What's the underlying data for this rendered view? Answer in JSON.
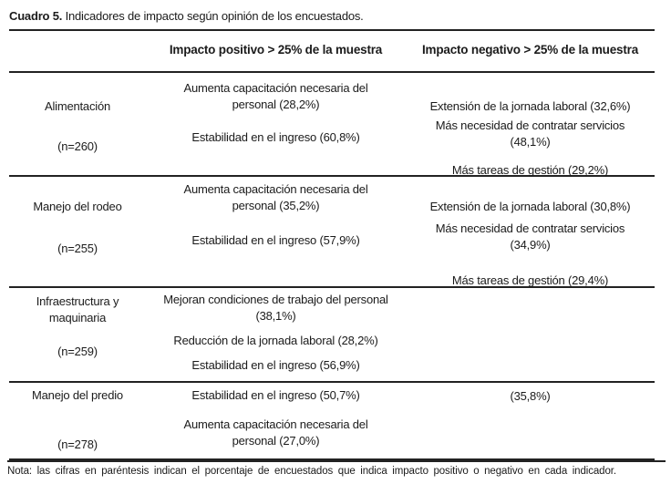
{
  "document": {
    "title_label": "Cuadro 5.",
    "title_text": " Indicadores de impacto según opinión de los encuestados.",
    "note": "Nota: las cifras en paréntesis indican el porcentaje de encuestados que indica impacto positivo o negativo en cada indicador."
  },
  "table": {
    "headers": {
      "positive": "Impacto positivo > 25% de la muestra",
      "negative": "Impacto negativo > 25% de la muestra"
    },
    "rows": [
      {
        "category": "Alimentación",
        "n": "(n=260)",
        "positive": [
          "Aumenta capacitación necesaria del personal (28,2%)",
          "Estabilidad en el ingreso (60,8%)"
        ],
        "negative": [
          "Extensión de la jornada laboral (32,6%)",
          "Más necesidad de contratar servicios (48,1%)",
          "Más tareas de gestión (29,2%)"
        ]
      },
      {
        "category": "Manejo del rodeo",
        "n": "(n=255)",
        "positive": [
          "Aumenta capacitación necesaria del personal (35,2%)",
          "Estabilidad en el ingreso (57,9%)"
        ],
        "negative": [
          "Extensión de la jornada laboral (30,8%)",
          "Más necesidad de contratar servicios (34,9%)",
          "Más tareas de gestión (29,4%)"
        ]
      },
      {
        "category": "Infraestructura y maquinaria",
        "n": "(n=259)",
        "positive": [
          "Mejoran condiciones de trabajo del personal (38,1%)",
          "Reducción de la jornada laboral (28,2%)",
          "Estabilidad en el ingreso (56,9%)"
        ],
        "negative": []
      },
      {
        "category": "Manejo del predio",
        "n": "(n=278)",
        "positive": [
          "Estabilidad en el ingreso (50,7%)",
          "Aumenta capacitación necesaria del personal (27,0%)"
        ],
        "negative": [
          "(35,8%)"
        ]
      }
    ]
  },
  "colors": {
    "text": "#1b1b1b",
    "rule": "#222222",
    "background": "#ffffff"
  }
}
